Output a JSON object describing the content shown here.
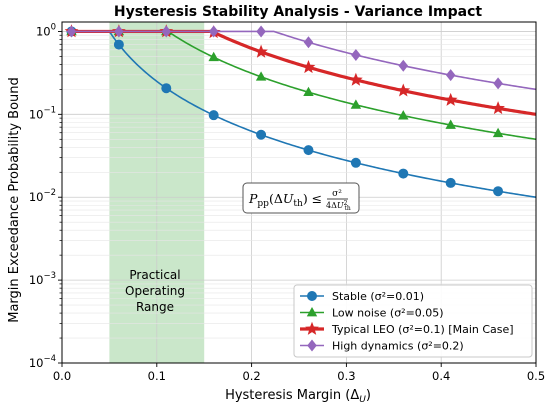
{
  "chart_data": {
    "type": "line",
    "title": "Hysteresis Stability Analysis - Variance Impact",
    "xlabel": "Hysteresis Margin (Δ",
    "xlabel_sub": "U",
    "xlabel_end": ")",
    "ylabel": "Margin Exceedance Probability Bound",
    "xlim": [
      0,
      0.5
    ],
    "ylim": [
      0.0001,
      1.3
    ],
    "yscale": "log",
    "grid": true,
    "legend_position": "lower-right",
    "x_ticks": [
      0,
      0.1,
      0.2,
      0.3,
      0.4,
      0.5
    ],
    "x_tick_labels": [
      "0.0",
      "0.1",
      "0.2",
      "0.3",
      "0.4",
      "0.5"
    ],
    "y_ticks": [
      1,
      0.1,
      0.01,
      0.001,
      0.0001
    ],
    "y_tick_labels": [
      {
        "base": "10",
        "exp": "0"
      },
      {
        "base": "10",
        "exp": "−1"
      },
      {
        "base": "10",
        "exp": "−2"
      },
      {
        "base": "10",
        "exp": "−3"
      },
      {
        "base": "10",
        "exp": "−4"
      }
    ],
    "shaded_region": {
      "x_range": [
        0.05,
        0.15
      ],
      "label_lines": [
        "Practical",
        "Operating",
        "Range"
      ],
      "color": "#2ca02c"
    },
    "annotation": {
      "P": "P",
      "pp": "pp",
      "arg_open": "(Δ",
      "U": "U",
      "th": "th",
      "arg_close": ") ≤",
      "num": "σ²",
      "den_a": "4Δ",
      "den_b": "U",
      "den_sup": "2",
      "den_sub": "th"
    },
    "series": [
      {
        "name": "Stable (σ²=0.01)",
        "color": "#1f77b4",
        "marker": "circle",
        "line_width": 1.6,
        "sigma2": 0.01,
        "marker_x": [
          0.01,
          0.06,
          0.11,
          0.16,
          0.21,
          0.26,
          0.31,
          0.36,
          0.41,
          0.46
        ]
      },
      {
        "name": "Low noise (σ²=0.05)",
        "color": "#2ca02c",
        "marker": "triangle",
        "line_width": 1.6,
        "sigma2": 0.05,
        "marker_x": [
          0.01,
          0.06,
          0.11,
          0.16,
          0.21,
          0.26,
          0.31,
          0.36,
          0.41,
          0.46
        ]
      },
      {
        "name": "Typical LEO (σ²=0.1) [Main Case]",
        "color": "#d62728",
        "marker": "star",
        "line_width": 3.2,
        "sigma2": 0.1,
        "marker_x": [
          0.01,
          0.06,
          0.11,
          0.16,
          0.21,
          0.26,
          0.31,
          0.36,
          0.41,
          0.46
        ]
      },
      {
        "name": "High dynamics (σ²=0.2)",
        "color": "#9467bd",
        "marker": "diamond",
        "line_width": 1.6,
        "sigma2": 0.2,
        "marker_x": [
          0.01,
          0.06,
          0.11,
          0.16,
          0.21,
          0.26,
          0.31,
          0.36,
          0.41,
          0.46
        ]
      }
    ]
  }
}
